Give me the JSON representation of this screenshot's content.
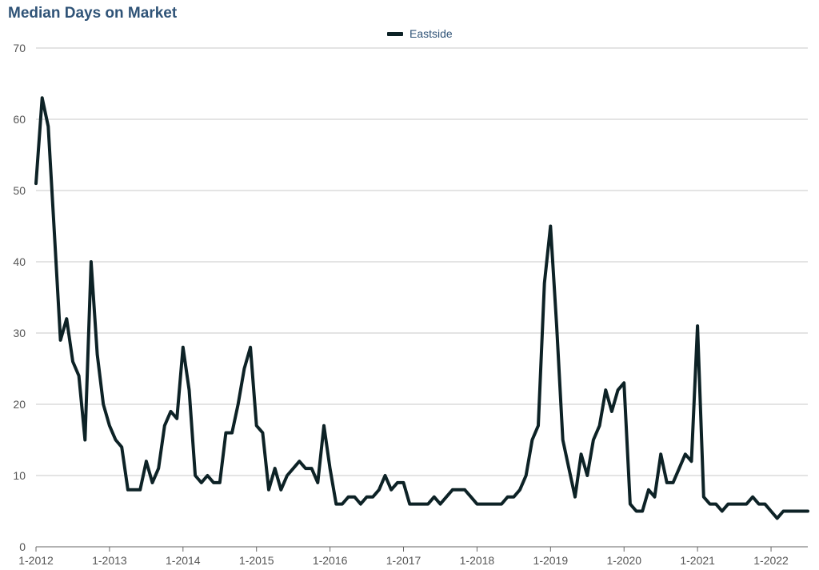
{
  "chart_data": {
    "type": "line",
    "title": "Median Days on Market",
    "xlabel": "",
    "ylabel": "",
    "ylim": [
      0,
      70
    ],
    "yticks": [
      "0",
      "10",
      "20",
      "30",
      "40",
      "50",
      "60",
      "70"
    ],
    "xticks": [
      {
        "label": "1-2012",
        "year": 2012
      },
      {
        "label": "1-2013",
        "year": 2013
      },
      {
        "label": "1-2014",
        "year": 2014
      },
      {
        "label": "1-2015",
        "year": 2015
      },
      {
        "label": "1-2016",
        "year": 2016
      },
      {
        "label": "1-2017",
        "year": 2017
      },
      {
        "label": "1-2018",
        "year": 2018
      },
      {
        "label": "1-2019",
        "year": 2019
      },
      {
        "label": "1-2020",
        "year": 2020
      },
      {
        "label": "1-2021",
        "year": 2021
      },
      {
        "label": "1-2022",
        "year": 2022
      }
    ],
    "grid": true,
    "legend_position": "top-center",
    "series": [
      {
        "name": "Eastside",
        "color": "#0d2226",
        "x": [
          "1-2012",
          "2-2012",
          "3-2012",
          "4-2012",
          "5-2012",
          "6-2012",
          "7-2012",
          "8-2012",
          "9-2012",
          "10-2012",
          "11-2012",
          "12-2012",
          "1-2013",
          "2-2013",
          "3-2013",
          "4-2013",
          "5-2013",
          "6-2013",
          "7-2013",
          "8-2013",
          "9-2013",
          "10-2013",
          "11-2013",
          "12-2013",
          "1-2014",
          "2-2014",
          "3-2014",
          "4-2014",
          "5-2014",
          "6-2014",
          "7-2014",
          "8-2014",
          "9-2014",
          "10-2014",
          "11-2014",
          "12-2014",
          "1-2015",
          "2-2015",
          "3-2015",
          "4-2015",
          "5-2015",
          "6-2015",
          "7-2015",
          "8-2015",
          "9-2015",
          "10-2015",
          "11-2015",
          "12-2015",
          "1-2016",
          "2-2016",
          "3-2016",
          "4-2016",
          "5-2016",
          "6-2016",
          "7-2016",
          "8-2016",
          "9-2016",
          "10-2016",
          "11-2016",
          "12-2016",
          "1-2017",
          "2-2017",
          "3-2017",
          "4-2017",
          "5-2017",
          "6-2017",
          "7-2017",
          "8-2017",
          "9-2017",
          "10-2017",
          "11-2017",
          "12-2017",
          "1-2018",
          "2-2018",
          "3-2018",
          "4-2018",
          "5-2018",
          "6-2018",
          "7-2018",
          "8-2018",
          "9-2018",
          "10-2018",
          "11-2018",
          "12-2018",
          "1-2019",
          "2-2019",
          "3-2019",
          "4-2019",
          "5-2019",
          "6-2019",
          "7-2019",
          "8-2019",
          "9-2019",
          "10-2019",
          "11-2019",
          "12-2019",
          "1-2020",
          "2-2020",
          "3-2020",
          "4-2020",
          "5-2020",
          "6-2020",
          "7-2020",
          "8-2020",
          "9-2020",
          "10-2020",
          "11-2020",
          "12-2020",
          "1-2021",
          "2-2021",
          "3-2021",
          "4-2021",
          "5-2021",
          "6-2021",
          "7-2021",
          "8-2021",
          "9-2021",
          "10-2021",
          "11-2021",
          "12-2021",
          "1-2022",
          "2-2022",
          "3-2022",
          "4-2022",
          "5-2022",
          "6-2022",
          "7-2022"
        ],
        "values": [
          51,
          63,
          59,
          44,
          29,
          32,
          26,
          24,
          15,
          40,
          27,
          20,
          17,
          15,
          14,
          8,
          8,
          8,
          12,
          9,
          11,
          17,
          19,
          18,
          28,
          22,
          10,
          9,
          10,
          9,
          9,
          16,
          16,
          20,
          25,
          28,
          17,
          16,
          8,
          11,
          8,
          10,
          11,
          12,
          11,
          11,
          9,
          17,
          11,
          6,
          6,
          7,
          7,
          6,
          7,
          7,
          8,
          10,
          8,
          9,
          9,
          6,
          6,
          6,
          6,
          7,
          6,
          7,
          8,
          8,
          8,
          7,
          6,
          6,
          6,
          6,
          6,
          7,
          7,
          8,
          10,
          15,
          17,
          37,
          45,
          31,
          15,
          11,
          7,
          13,
          10,
          15,
          17,
          22,
          19,
          22,
          23,
          6,
          5,
          5,
          8,
          7,
          13,
          9,
          9,
          11,
          13,
          12,
          31,
          7,
          6,
          6,
          5,
          6,
          6,
          6,
          6,
          7,
          6,
          6,
          5,
          4,
          5,
          5,
          5,
          5,
          5
        ]
      }
    ]
  }
}
